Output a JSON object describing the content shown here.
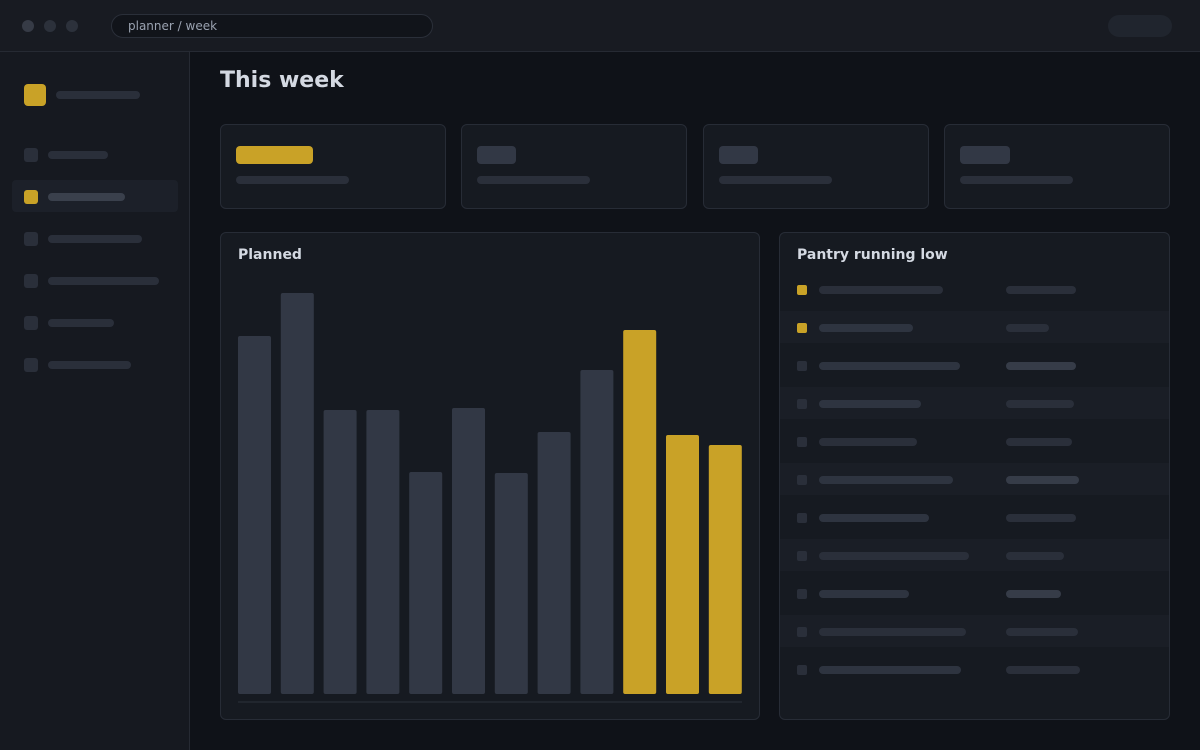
{
  "window": {
    "address": "planner / week"
  },
  "page": {
    "title": "This week"
  },
  "chart_data": {
    "type": "bar",
    "title": "Planned",
    "categories": [
      null,
      null,
      null,
      null,
      null,
      null,
      null,
      null,
      null,
      null,
      null,
      null
    ],
    "values": [
      358,
      401,
      284,
      284,
      222,
      286,
      221,
      262,
      324,
      364,
      259,
      249
    ],
    "colors": [
      "#323845",
      "#323845",
      "#323845",
      "#323845",
      "#323845",
      "#323845",
      "#323845",
      "#323845",
      "#323845",
      "#c9a227",
      "#c9a227",
      "#c9a227"
    ],
    "ylim": [
      0,
      414
    ]
  },
  "pantry": {
    "title": "Pantry running low"
  }
}
